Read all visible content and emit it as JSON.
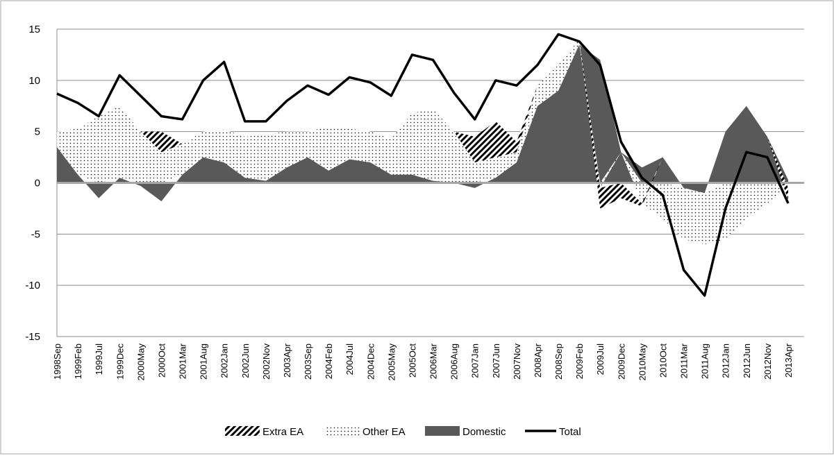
{
  "chart_data": {
    "type": "stacked-area-line",
    "categories": [
      "1998Sep",
      "1999Feb",
      "1999Jul",
      "1999Dec",
      "2000May",
      "2000Oct",
      "2001Mar",
      "2001Aug",
      "2002Jan",
      "2002Jun",
      "2002Nov",
      "2003Apr",
      "2003Sep",
      "2004Feb",
      "2004Jul",
      "2004Dec",
      "2005May",
      "2005Oct",
      "2006Mar",
      "2006Aug",
      "2007Jan",
      "2007Jun",
      "2007Nov",
      "2008Apr",
      "2008Sep",
      "2009Feb",
      "2009Jul",
      "2009Dec",
      "2010May",
      "2010Oct",
      "2011Mar",
      "2011Aug",
      "2012Jan",
      "2012Jun",
      "2012Nov",
      "2013Apr"
    ],
    "series": [
      {
        "name": "Extra EA",
        "kind": "area",
        "pattern": "hatch",
        "color": "#000000",
        "values": [
          0,
          0,
          0,
          0,
          0,
          2,
          0,
          0,
          0,
          0,
          0,
          0,
          0,
          0,
          0,
          0,
          0,
          0,
          0,
          0,
          2.5,
          3.5,
          1,
          0,
          0,
          0,
          -2,
          -1.5,
          -0.3,
          0,
          0,
          0,
          0,
          0,
          0,
          -1.2
        ]
      },
      {
        "name": "Other EA",
        "kind": "area",
        "pattern": "dots",
        "color": "#000000",
        "values": [
          1.5,
          4.5,
          6.5,
          7,
          5,
          3,
          3,
          2.5,
          3.2,
          4,
          4.5,
          3.5,
          2.5,
          4.3,
          3,
          3,
          3.5,
          6,
          7,
          5,
          2,
          2,
          1,
          2,
          2.5,
          0.5,
          -0.5,
          0,
          -2,
          -3.5,
          -5,
          -5,
          -5.5,
          -3.5,
          -2,
          -0.5
        ]
      },
      {
        "name": "Domestic",
        "kind": "area",
        "pattern": "solid",
        "color": "#595959",
        "values": [
          3.5,
          0.8,
          -1.5,
          0.5,
          -0.3,
          -1.8,
          0.8,
          2.5,
          2,
          0.5,
          0.2,
          1.5,
          2.5,
          1.2,
          2.3,
          2,
          0.8,
          0.8,
          0.2,
          0,
          -0.5,
          0.5,
          2,
          7.5,
          9,
          13.5,
          12,
          3,
          1.5,
          2.5,
          -0.5,
          -1,
          5,
          7.5,
          4.5,
          0.3
        ]
      },
      {
        "name": "Total",
        "kind": "line",
        "color": "#000000",
        "values": [
          8.7,
          7.8,
          6.5,
          10.5,
          8.5,
          6.5,
          6.2,
          10,
          11.8,
          6,
          6,
          8,
          9.5,
          8.6,
          10.3,
          9.8,
          8.5,
          12.5,
          12,
          8.8,
          6.2,
          10,
          9.5,
          11.5,
          14.5,
          13.8,
          11.5,
          4,
          0.5,
          -1.2,
          -8.5,
          -11,
          -2.5,
          3,
          2.5,
          -2
        ]
      }
    ],
    "ylim": [
      -15,
      15
    ],
    "yticks": [
      -15,
      -10,
      -5,
      0,
      5,
      10,
      15
    ],
    "grid": true,
    "legend": "bottom"
  }
}
